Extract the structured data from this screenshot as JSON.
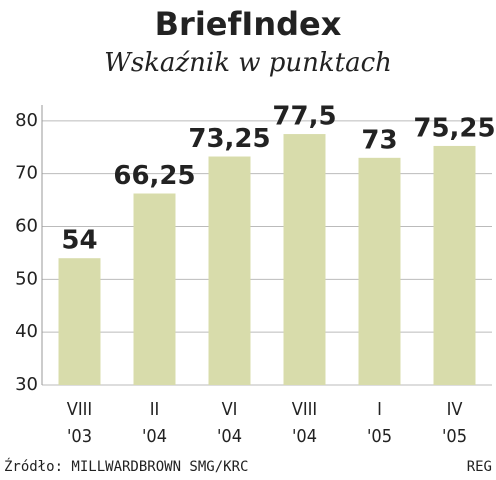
{
  "chart_data": {
    "type": "bar",
    "title": "BriefIndex",
    "subtitle": "Wskaźnik w punktach",
    "categories": [
      "VIII\n'03",
      "II\n'04",
      "VI\n'04",
      "VIII\n'04",
      "I\n'05",
      "IV\n'05"
    ],
    "values": [
      54,
      66.25,
      73.25,
      77.5,
      73,
      75.25
    ],
    "value_labels": [
      "54",
      "66,25",
      "73,25",
      "77,5",
      "73",
      "75,25"
    ],
    "color": "#d8dcab",
    "ylim": [
      30,
      83
    ],
    "yticks": [
      30,
      40,
      50,
      60,
      70,
      80
    ],
    "grid": true,
    "source": "Źródło: MILLWARDBROWN SMG/KRC",
    "credit": "REG"
  }
}
